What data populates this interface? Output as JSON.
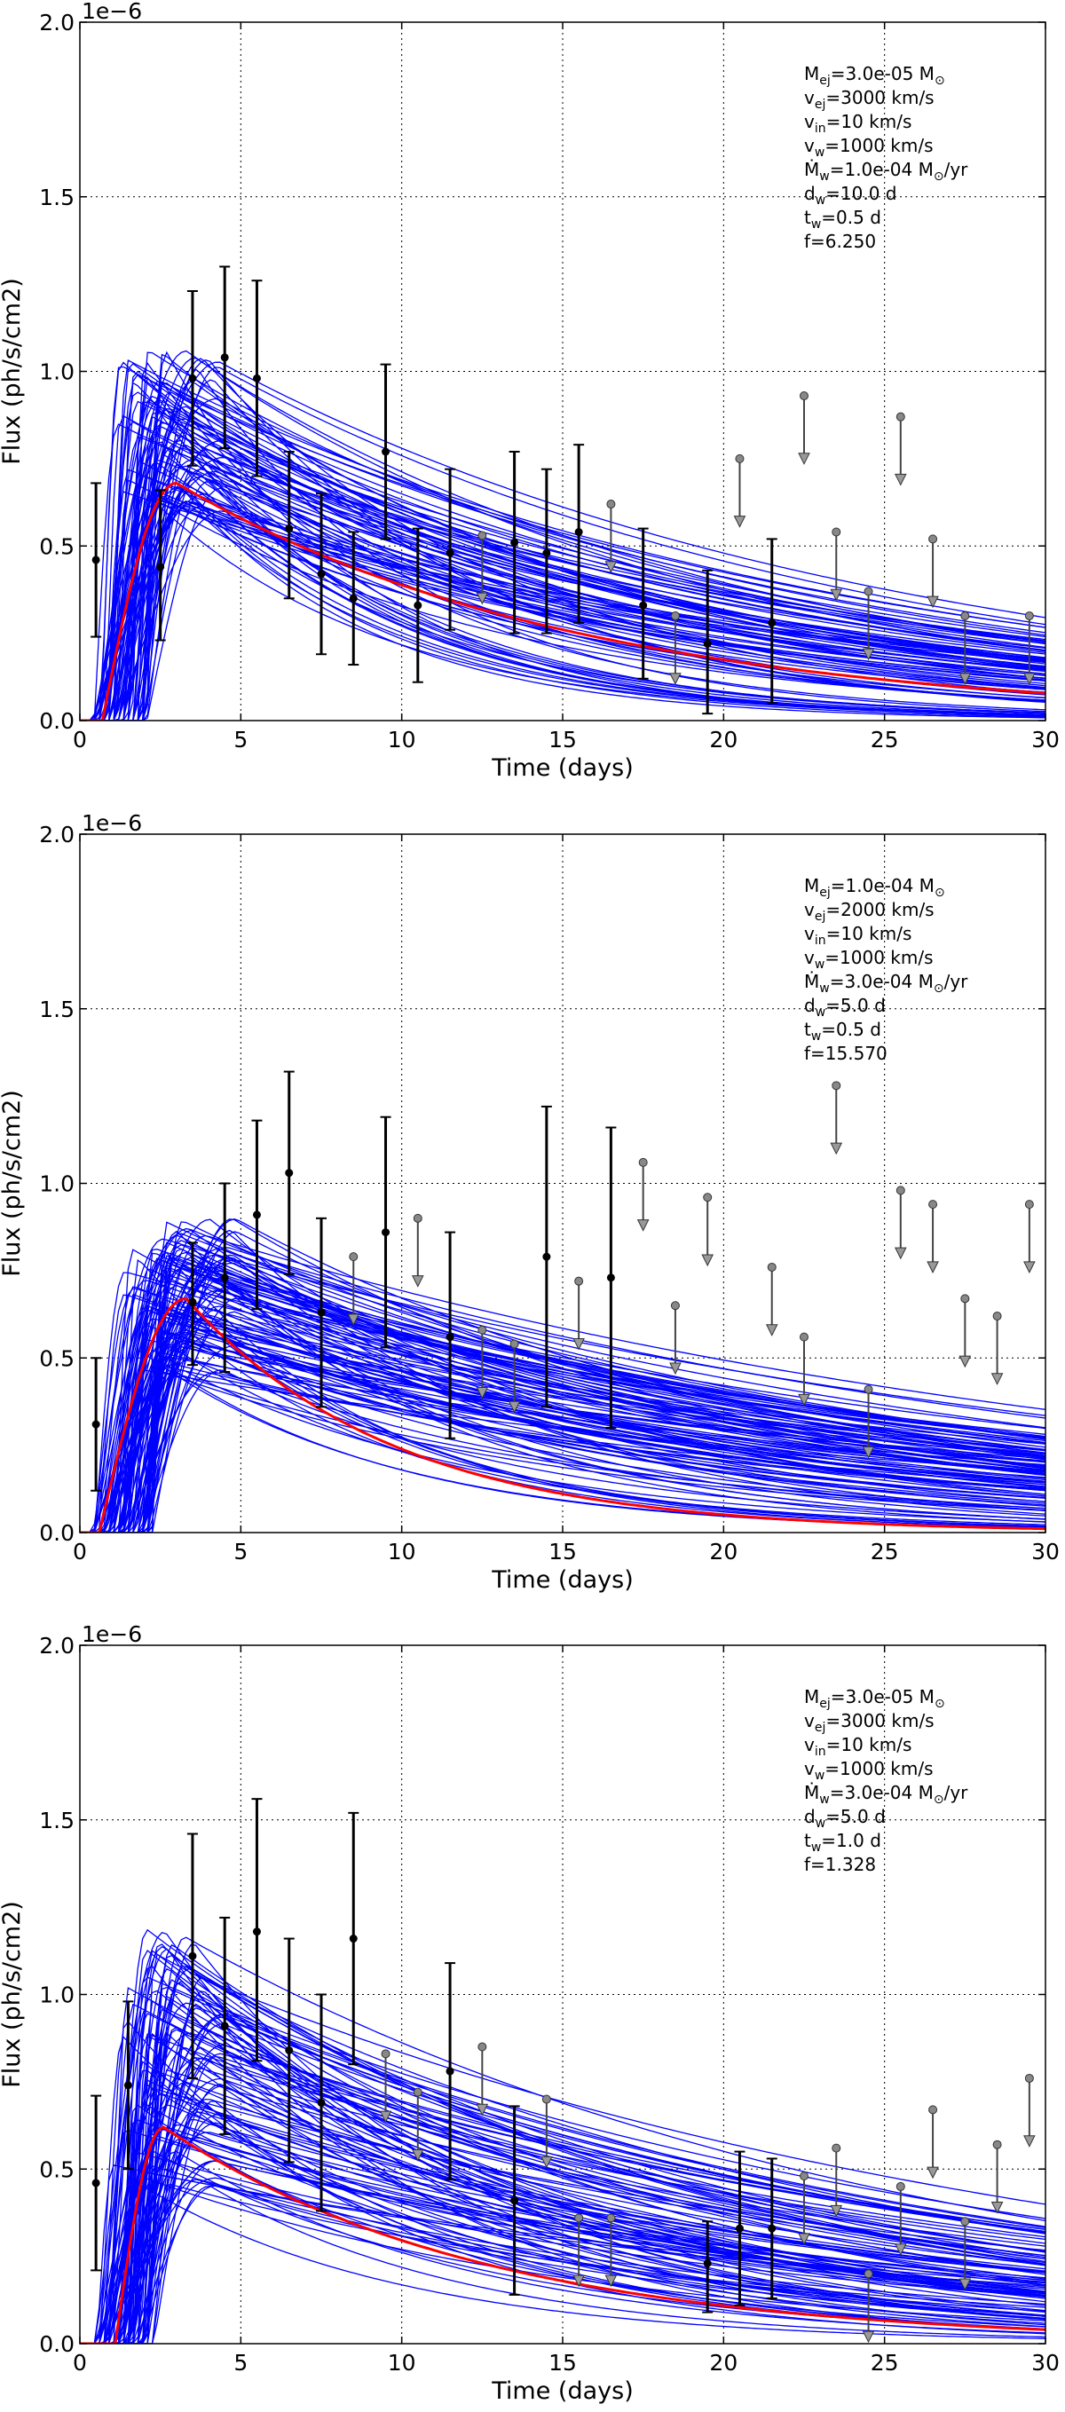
{
  "chart_data": [
    {
      "type": "line",
      "xlabel": "Time (days)",
      "ylabel": "Flux (ph/s/cm2)",
      "y_offset": "1e−6",
      "xlim": [
        0,
        30
      ],
      "ylim": [
        0,
        2.0
      ],
      "xticks": [
        "0",
        "5",
        "10",
        "15",
        "20",
        "25",
        "30"
      ],
      "yticks": [
        "0.0",
        "0.5",
        "1.0",
        "1.5",
        "2.0"
      ],
      "grid": true,
      "params": [
        {
          "name": "M",
          "sub": "ej",
          "value": "=3.0e-05 M",
          "unit_sub": "⊙",
          "tail": ""
        },
        {
          "name": "v",
          "sub": "ej",
          "value": "=3000 km/s",
          "unit_sub": "",
          "tail": ""
        },
        {
          "name": "v",
          "sub": "in",
          "value": "=10 km/s",
          "unit_sub": "",
          "tail": ""
        },
        {
          "name": "v",
          "sub": "w",
          "value": "=1000 km/s",
          "unit_sub": "",
          "tail": ""
        },
        {
          "name": "Ṁ",
          "sub": "w",
          "value": "=1.0e-04 M",
          "unit_sub": "⊙",
          "tail": "/yr"
        },
        {
          "name": "d",
          "sub": "w",
          "value": "=10.0 d",
          "unit_sub": "",
          "tail": ""
        },
        {
          "name": "t",
          "sub": "w",
          "value": "=0.5 d",
          "unit_sub": "",
          "tail": ""
        },
        {
          "name": "f",
          "sub": "",
          "value": "=6.250",
          "unit_sub": "",
          "tail": ""
        }
      ],
      "best_fit": {
        "name": "best fit",
        "color": "#ff0000",
        "t0": 0.7,
        "peak_t": 3.0,
        "peak": 0.68,
        "decay": 12.5
      },
      "model_band": {
        "name": "model samples",
        "color": "#0000ff",
        "count": 90,
        "t0_range": [
          0.4,
          2.1
        ],
        "peak_t_range": [
          1.1,
          4.5
        ],
        "peak_range": [
          0.6,
          1.06
        ],
        "decay_range": [
          6,
          22
        ],
        "late_floor": 0.0
      },
      "detections": [
        {
          "x": 0.5,
          "y": 0.46,
          "lo": 0.24,
          "hi": 0.68
        },
        {
          "x": 2.5,
          "y": 0.44,
          "lo": 0.23,
          "hi": 0.66
        },
        {
          "x": 3.5,
          "y": 0.98,
          "lo": 0.73,
          "hi": 1.23
        },
        {
          "x": 4.5,
          "y": 1.04,
          "lo": 0.78,
          "hi": 1.3
        },
        {
          "x": 5.5,
          "y": 0.98,
          "lo": 0.7,
          "hi": 1.26
        },
        {
          "x": 6.5,
          "y": 0.55,
          "lo": 0.35,
          "hi": 0.77
        },
        {
          "x": 7.5,
          "y": 0.42,
          "lo": 0.19,
          "hi": 0.65
        },
        {
          "x": 8.5,
          "y": 0.35,
          "lo": 0.16,
          "hi": 0.54
        },
        {
          "x": 9.5,
          "y": 0.77,
          "lo": 0.52,
          "hi": 1.02
        },
        {
          "x": 10.5,
          "y": 0.33,
          "lo": 0.11,
          "hi": 0.55
        },
        {
          "x": 11.5,
          "y": 0.48,
          "lo": 0.26,
          "hi": 0.72
        },
        {
          "x": 13.5,
          "y": 0.51,
          "lo": 0.25,
          "hi": 0.77
        },
        {
          "x": 14.5,
          "y": 0.48,
          "lo": 0.25,
          "hi": 0.72
        },
        {
          "x": 15.5,
          "y": 0.54,
          "lo": 0.28,
          "hi": 0.79
        },
        {
          "x": 17.5,
          "y": 0.33,
          "lo": 0.12,
          "hi": 0.55
        },
        {
          "x": 19.5,
          "y": 0.22,
          "lo": 0.02,
          "hi": 0.43
        },
        {
          "x": 21.5,
          "y": 0.28,
          "lo": 0.05,
          "hi": 0.52
        }
      ],
      "upper_limits": [
        {
          "x": 12.5,
          "y": 0.53
        },
        {
          "x": 16.5,
          "y": 0.62
        },
        {
          "x": 18.5,
          "y": 0.3
        },
        {
          "x": 20.5,
          "y": 0.75
        },
        {
          "x": 22.5,
          "y": 0.93
        },
        {
          "x": 23.5,
          "y": 0.54
        },
        {
          "x": 24.5,
          "y": 0.37
        },
        {
          "x": 25.5,
          "y": 0.87
        },
        {
          "x": 26.5,
          "y": 0.52
        },
        {
          "x": 27.5,
          "y": 0.3
        },
        {
          "x": 29.5,
          "y": 0.3
        }
      ]
    },
    {
      "type": "line",
      "xlabel": "Time (days)",
      "ylabel": "Flux (ph/s/cm2)",
      "y_offset": "1e−6",
      "xlim": [
        0,
        30
      ],
      "ylim": [
        0,
        2.0
      ],
      "xticks": [
        "0",
        "5",
        "10",
        "15",
        "20",
        "25",
        "30"
      ],
      "yticks": [
        "0.0",
        "0.5",
        "1.0",
        "1.5",
        "2.0"
      ],
      "grid": true,
      "params": [
        {
          "name": "M",
          "sub": "ej",
          "value": "=1.0e-04 M",
          "unit_sub": "⊙",
          "tail": ""
        },
        {
          "name": "v",
          "sub": "ej",
          "value": "=2000 km/s",
          "unit_sub": "",
          "tail": ""
        },
        {
          "name": "v",
          "sub": "in",
          "value": "=10 km/s",
          "unit_sub": "",
          "tail": ""
        },
        {
          "name": "v",
          "sub": "w",
          "value": "=1000 km/s",
          "unit_sub": "",
          "tail": ""
        },
        {
          "name": "Ṁ",
          "sub": "w",
          "value": "=3.0e-04 M",
          "unit_sub": "⊙",
          "tail": "/yr"
        },
        {
          "name": "d",
          "sub": "w",
          "value": "=5.0 d",
          "unit_sub": "",
          "tail": ""
        },
        {
          "name": "t",
          "sub": "w",
          "value": "=0.5 d",
          "unit_sub": "",
          "tail": ""
        },
        {
          "name": "f",
          "sub": "",
          "value": "=15.570",
          "unit_sub": "",
          "tail": ""
        }
      ],
      "best_fit": {
        "name": "best fit",
        "color": "#ff0000",
        "t0": 0.6,
        "peak_t": 3.3,
        "peak": 0.67,
        "decay": 6.5
      },
      "model_band": {
        "name": "model samples",
        "color": "#0000ff",
        "count": 110,
        "t0_range": [
          0.4,
          2.3
        ],
        "peak_t_range": [
          1.2,
          5.0
        ],
        "peak_range": [
          0.45,
          0.9
        ],
        "decay_range": [
          6,
          30
        ],
        "late_floor": 0.0
      },
      "detections": [
        {
          "x": 0.5,
          "y": 0.31,
          "lo": 0.12,
          "hi": 0.5
        },
        {
          "x": 3.5,
          "y": 0.66,
          "lo": 0.48,
          "hi": 0.83
        },
        {
          "x": 4.5,
          "y": 0.73,
          "lo": 0.46,
          "hi": 1.0
        },
        {
          "x": 5.5,
          "y": 0.91,
          "lo": 0.64,
          "hi": 1.18
        },
        {
          "x": 6.5,
          "y": 1.03,
          "lo": 0.74,
          "hi": 1.32
        },
        {
          "x": 7.5,
          "y": 0.63,
          "lo": 0.36,
          "hi": 0.9
        },
        {
          "x": 9.5,
          "y": 0.86,
          "lo": 0.53,
          "hi": 1.19
        },
        {
          "x": 11.5,
          "y": 0.56,
          "lo": 0.27,
          "hi": 0.86
        },
        {
          "x": 14.5,
          "y": 0.79,
          "lo": 0.36,
          "hi": 1.22
        },
        {
          "x": 16.5,
          "y": 0.73,
          "lo": 0.3,
          "hi": 1.16
        }
      ],
      "upper_limits": [
        {
          "x": 8.5,
          "y": 0.79
        },
        {
          "x": 10.5,
          "y": 0.9
        },
        {
          "x": 12.5,
          "y": 0.58
        },
        {
          "x": 13.5,
          "y": 0.54
        },
        {
          "x": 15.5,
          "y": 0.72
        },
        {
          "x": 17.5,
          "y": 1.06
        },
        {
          "x": 18.5,
          "y": 0.65
        },
        {
          "x": 19.5,
          "y": 0.96
        },
        {
          "x": 21.5,
          "y": 0.76
        },
        {
          "x": 22.5,
          "y": 0.56
        },
        {
          "x": 23.5,
          "y": 1.28
        },
        {
          "x": 24.5,
          "y": 0.41
        },
        {
          "x": 25.5,
          "y": 0.98
        },
        {
          "x": 26.5,
          "y": 0.94
        },
        {
          "x": 27.5,
          "y": 0.67
        },
        {
          "x": 28.5,
          "y": 0.62
        },
        {
          "x": 29.5,
          "y": 0.94
        }
      ]
    },
    {
      "type": "line",
      "xlabel": "Time (days)",
      "ylabel": "Flux (ph/s/cm2)",
      "y_offset": "1e−6",
      "xlim": [
        0,
        30
      ],
      "ylim": [
        0,
        2.0
      ],
      "xticks": [
        "0",
        "5",
        "10",
        "15",
        "20",
        "25",
        "30"
      ],
      "yticks": [
        "0.0",
        "0.5",
        "1.0",
        "1.5",
        "2.0"
      ],
      "grid": true,
      "params": [
        {
          "name": "M",
          "sub": "ej",
          "value": "=3.0e-05 M",
          "unit_sub": "⊙",
          "tail": ""
        },
        {
          "name": "v",
          "sub": "ej",
          "value": "=3000 km/s",
          "unit_sub": "",
          "tail": ""
        },
        {
          "name": "v",
          "sub": "in",
          "value": "=10 km/s",
          "unit_sub": "",
          "tail": ""
        },
        {
          "name": "v",
          "sub": "w",
          "value": "=1000 km/s",
          "unit_sub": "",
          "tail": ""
        },
        {
          "name": "Ṁ",
          "sub": "w",
          "value": "=3.0e-04 M",
          "unit_sub": "⊙",
          "tail": "/yr"
        },
        {
          "name": "d",
          "sub": "w",
          "value": "=5.0 d",
          "unit_sub": "",
          "tail": ""
        },
        {
          "name": "t",
          "sub": "w",
          "value": "=1.0 d",
          "unit_sub": "",
          "tail": ""
        },
        {
          "name": "f",
          "sub": "",
          "value": "=1.328",
          "unit_sub": "",
          "tail": ""
        }
      ],
      "best_fit": {
        "name": "best fit",
        "color": "#ff0000",
        "t0": 1.1,
        "peak_t": 2.6,
        "peak": 0.62,
        "decay": 10
      },
      "model_band": {
        "name": "model samples",
        "color": "#0000ff",
        "count": 100,
        "t0_range": [
          0.5,
          2.3
        ],
        "peak_t_range": [
          1.0,
          4.5
        ],
        "peak_range": [
          0.45,
          1.2
        ],
        "decay_range": [
          8,
          28
        ],
        "late_floor": 0.0
      },
      "detections": [
        {
          "x": 0.5,
          "y": 0.46,
          "lo": 0.21,
          "hi": 0.71
        },
        {
          "x": 1.5,
          "y": 0.74,
          "lo": 0.5,
          "hi": 0.98
        },
        {
          "x": 3.5,
          "y": 1.11,
          "lo": 0.76,
          "hi": 1.46
        },
        {
          "x": 4.5,
          "y": 0.91,
          "lo": 0.6,
          "hi": 1.22
        },
        {
          "x": 5.5,
          "y": 1.18,
          "lo": 0.81,
          "hi": 1.56
        },
        {
          "x": 6.5,
          "y": 0.84,
          "lo": 0.52,
          "hi": 1.16
        },
        {
          "x": 7.5,
          "y": 0.69,
          "lo": 0.38,
          "hi": 1.0
        },
        {
          "x": 8.5,
          "y": 1.16,
          "lo": 0.8,
          "hi": 1.52
        },
        {
          "x": 11.5,
          "y": 0.78,
          "lo": 0.47,
          "hi": 1.09
        },
        {
          "x": 13.5,
          "y": 0.41,
          "lo": 0.14,
          "hi": 0.68
        },
        {
          "x": 19.5,
          "y": 0.23,
          "lo": 0.09,
          "hi": 0.35
        },
        {
          "x": 20.5,
          "y": 0.33,
          "lo": 0.11,
          "hi": 0.55
        },
        {
          "x": 21.5,
          "y": 0.33,
          "lo": 0.13,
          "hi": 0.53
        }
      ],
      "upper_limits": [
        {
          "x": 9.5,
          "y": 0.83
        },
        {
          "x": 10.5,
          "y": 0.72
        },
        {
          "x": 12.5,
          "y": 0.85
        },
        {
          "x": 14.5,
          "y": 0.7
        },
        {
          "x": 15.5,
          "y": 0.36
        },
        {
          "x": 16.5,
          "y": 0.36
        },
        {
          "x": 22.5,
          "y": 0.48
        },
        {
          "x": 23.5,
          "y": 0.56
        },
        {
          "x": 24.5,
          "y": 0.2
        },
        {
          "x": 25.5,
          "y": 0.45
        },
        {
          "x": 26.5,
          "y": 0.67
        },
        {
          "x": 27.5,
          "y": 0.35
        },
        {
          "x": 28.5,
          "y": 0.57
        },
        {
          "x": 29.5,
          "y": 0.76
        }
      ]
    }
  ]
}
